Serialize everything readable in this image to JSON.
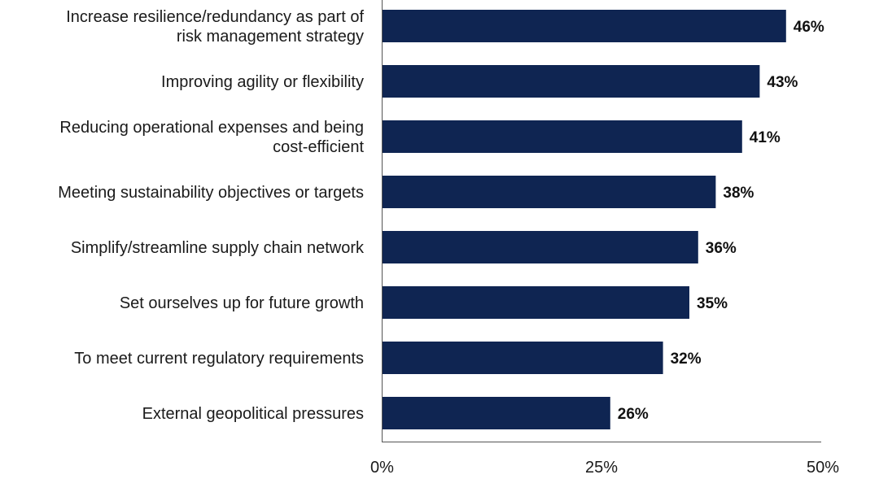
{
  "chart_data": {
    "type": "bar",
    "orientation": "horizontal",
    "title": "",
    "xlabel": "",
    "ylabel": "",
    "xlim": [
      0,
      50
    ],
    "grid": false,
    "bar_color": "#0f2552",
    "categories": [
      [
        "Increase resilience/redundancy as part of",
        "risk management strategy"
      ],
      [
        "Improving agility or flexibility"
      ],
      [
        "Reducing operational expenses and being",
        "cost-efficient"
      ],
      [
        "Meeting sustainability objectives or targets"
      ],
      [
        "Simplify/streamline supply chain network"
      ],
      [
        "Set ourselves up for future growth"
      ],
      [
        "To meet current regulatory requirements"
      ],
      [
        "External geopolitical pressures"
      ]
    ],
    "values": [
      46,
      43,
      41,
      38,
      36,
      35,
      32,
      26
    ],
    "value_labels": [
      "46%",
      "43%",
      "41%",
      "38%",
      "36%",
      "35%",
      "32%",
      "26%"
    ],
    "x_ticks": [
      0,
      25,
      50
    ],
    "x_tick_labels": [
      "0%",
      "25%",
      "50%"
    ]
  }
}
